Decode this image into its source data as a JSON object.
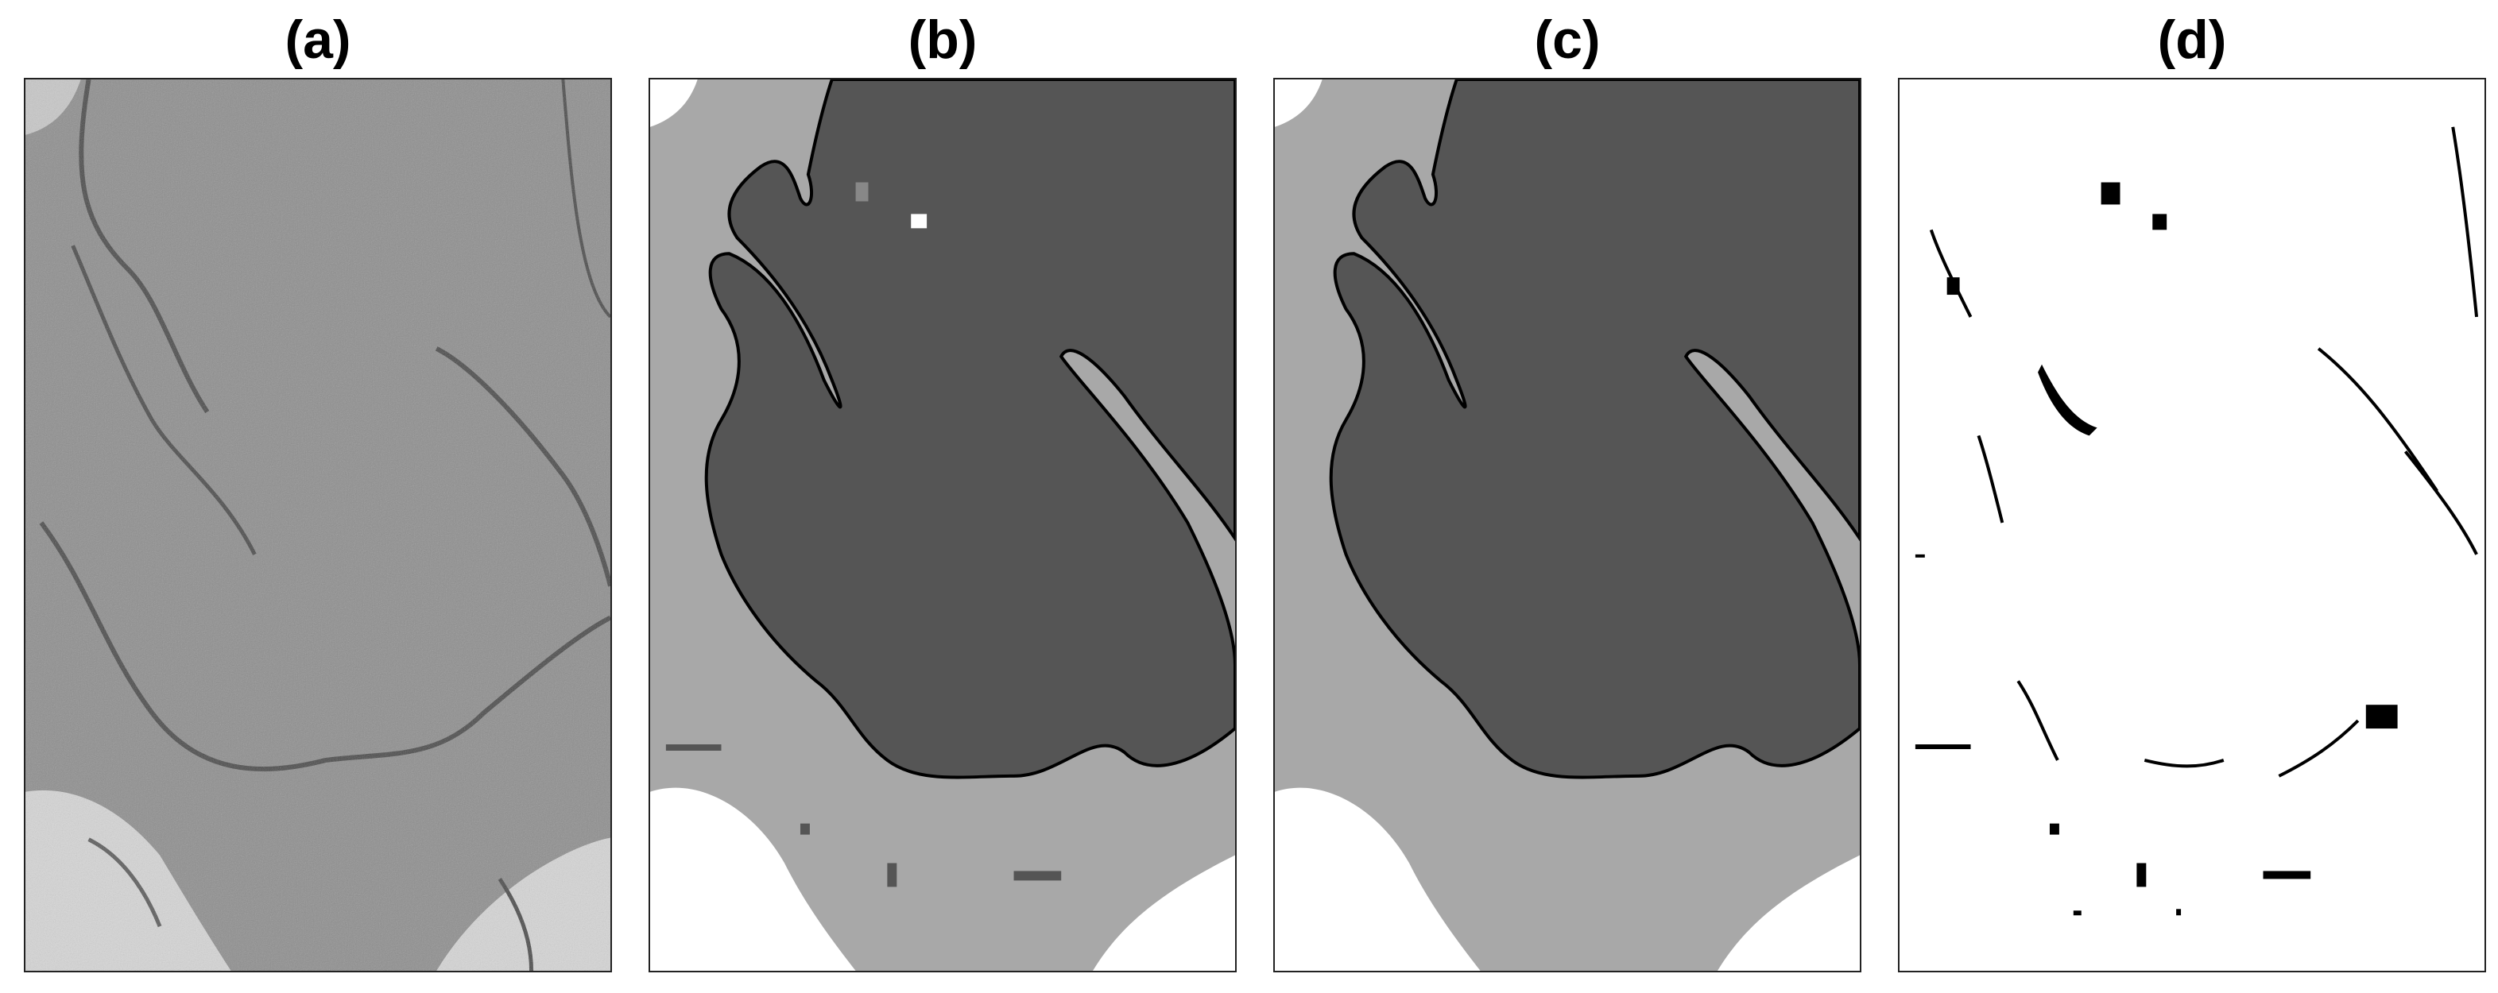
{
  "panels": [
    {
      "label": "(a)"
    },
    {
      "label": "(b)"
    },
    {
      "label": "(c)"
    },
    {
      "label": "(d)"
    }
  ],
  "colors": {
    "background": "#ffffff",
    "micrograph": "#8e8e8e",
    "micrograph_light": "#d6d6d6",
    "micrograph_membrane": "#4a4a4a",
    "seg_dark": "#555555",
    "seg_light": "#a8a8a8",
    "seg_white": "#ffffff",
    "boundary": "#000000"
  }
}
